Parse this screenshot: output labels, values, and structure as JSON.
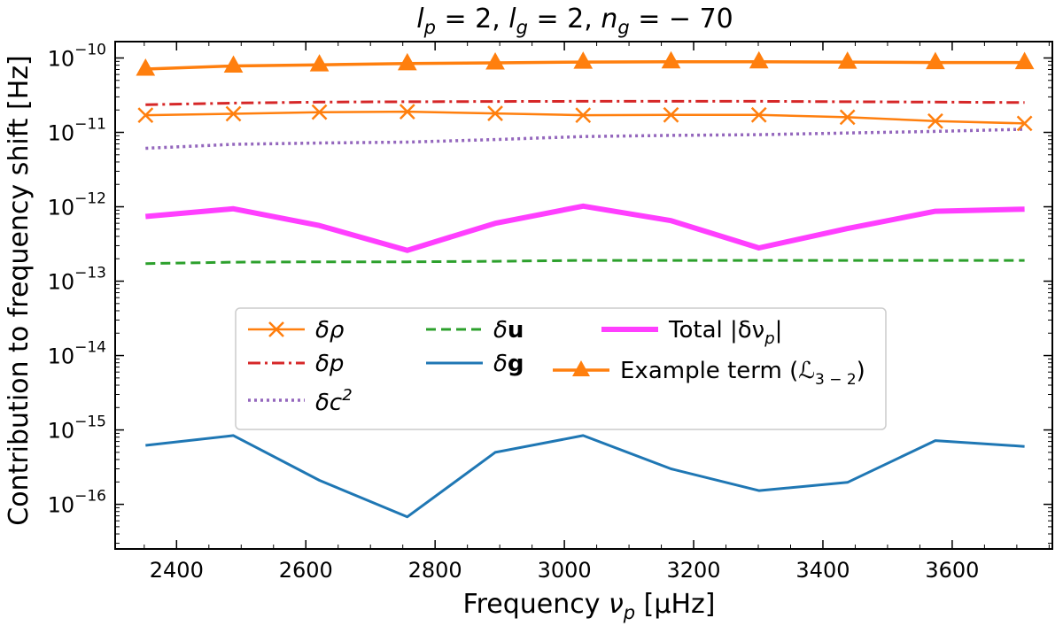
{
  "chart_data": {
    "type": "line",
    "title": "l_p = 2, l_g = 2, n_g = −70",
    "title_parts": {
      "lp_label": "l",
      "lp_sub": "p",
      "lp_eq": " = 2, ",
      "lg_label": "l",
      "lg_sub": "g",
      "lg_eq": " = 2, ",
      "ng_label": "n",
      "ng_sub": "g",
      "ng_eq": " = − 70"
    },
    "xlabel": "Frequency ν_p [μHz]",
    "xlabel_parts": {
      "main": "Frequency ",
      "nu": "ν",
      "sub": "p",
      "unit": " [μHz]"
    },
    "ylabel": "Contribution to frequency shift [Hz]",
    "yscale": "log",
    "xlim": [
      2305,
      3755
    ],
    "ylim_exp": [
      -16.6,
      -9.78
    ],
    "xticks": [
      2400,
      2600,
      2800,
      3000,
      3200,
      3400,
      3600
    ],
    "yticks_exp": [
      -16,
      -15,
      -14,
      -13,
      -12,
      -11,
      -10
    ],
    "ytick_base": "10",
    "ytick_minus": "−",
    "x": [
      2352,
      2488,
      2621,
      2757,
      2893,
      3029,
      3165,
      3301,
      3438,
      3574,
      3712
    ],
    "series": [
      {
        "key": "drho",
        "name": "δρ",
        "legend_main": "δρ",
        "legend_sup": "",
        "bold": false,
        "color": "#ff7f0e",
        "dash": "",
        "width": 2.5,
        "marker": "x",
        "values": [
          1.7e-11,
          1.78e-11,
          1.87e-11,
          1.9e-11,
          1.8e-11,
          1.7e-11,
          1.72e-11,
          1.72e-11,
          1.6e-11,
          1.42e-11,
          1.32e-11
        ]
      },
      {
        "key": "dp",
        "name": "δp",
        "legend_main": "δp",
        "legend_sup": "",
        "bold": false,
        "color": "#d62728",
        "dash": "14,5,3,5",
        "width": 3,
        "marker": "",
        "values": [
          2.35e-11,
          2.48e-11,
          2.55e-11,
          2.58e-11,
          2.6e-11,
          2.62e-11,
          2.62e-11,
          2.62e-11,
          2.58e-11,
          2.55e-11,
          2.52e-11
        ]
      },
      {
        "key": "dc2",
        "name": "δc²",
        "legend_main": "δc",
        "legend_sup": "2",
        "bold": false,
        "color": "#9467bd",
        "dash": "3,4",
        "width": 3.5,
        "marker": "",
        "values": [
          6.1e-12,
          6.9e-12,
          7.2e-12,
          7.4e-12,
          8e-12,
          8.8e-12,
          9.1e-12,
          9.3e-12,
          9.8e-12,
          1.03e-11,
          1.1e-11
        ]
      },
      {
        "key": "du",
        "name": "δu",
        "legend_main": "δ",
        "legend_sup": "u",
        "bold": true,
        "color": "#2ca02c",
        "dash": "11,6",
        "width": 3,
        "marker": "",
        "values": [
          1.72e-13,
          1.8e-13,
          1.82e-13,
          1.82e-13,
          1.85e-13,
          1.9e-13,
          1.9e-13,
          1.9e-13,
          1.9e-13,
          1.9e-13,
          1.9e-13
        ]
      },
      {
        "key": "dg",
        "name": "δg",
        "legend_main": "δ",
        "legend_sup": "g",
        "bold": true,
        "color": "#1f77b4",
        "dash": "",
        "width": 3,
        "marker": "",
        "values": [
          6.2e-16,
          8.4e-16,
          2.1e-16,
          6.8e-17,
          5e-16,
          8.4e-16,
          3e-16,
          1.53e-16,
          1.97e-16,
          7.2e-16,
          6e-16
        ]
      },
      {
        "key": "total",
        "name": "Total |δν_p|",
        "legend_main": "Total |δν",
        "legend_sub": "p",
        "legend_tail": "|",
        "bold": false,
        "color": "#ff3fff",
        "dash": "",
        "width": 6,
        "marker": "",
        "values": [
          7.4e-13,
          9.4e-13,
          5.6e-13,
          2.6e-13,
          6e-13,
          1.02e-12,
          6.5e-13,
          2.8e-13,
          5.1e-13,
          8.7e-13,
          9.3e-13
        ]
      },
      {
        "key": "example",
        "name": "Example term (L_{3−2})",
        "legend_main": "Example term (",
        "legend_script": "ℒ",
        "legend_sub": "3 − 2",
        "legend_tail": ")",
        "bold": false,
        "color": "#ff7f0e",
        "dash": "",
        "width": 3.5,
        "marker": "triangle",
        "values": [
          7.1e-11,
          7.8e-11,
          8.1e-11,
          8.4e-11,
          8.6e-11,
          8.8e-11,
          8.9e-11,
          8.9e-11,
          8.8e-11,
          8.7e-11,
          8.7e-11
        ]
      }
    ],
    "legend_placement": "center-left",
    "grid": false
  }
}
